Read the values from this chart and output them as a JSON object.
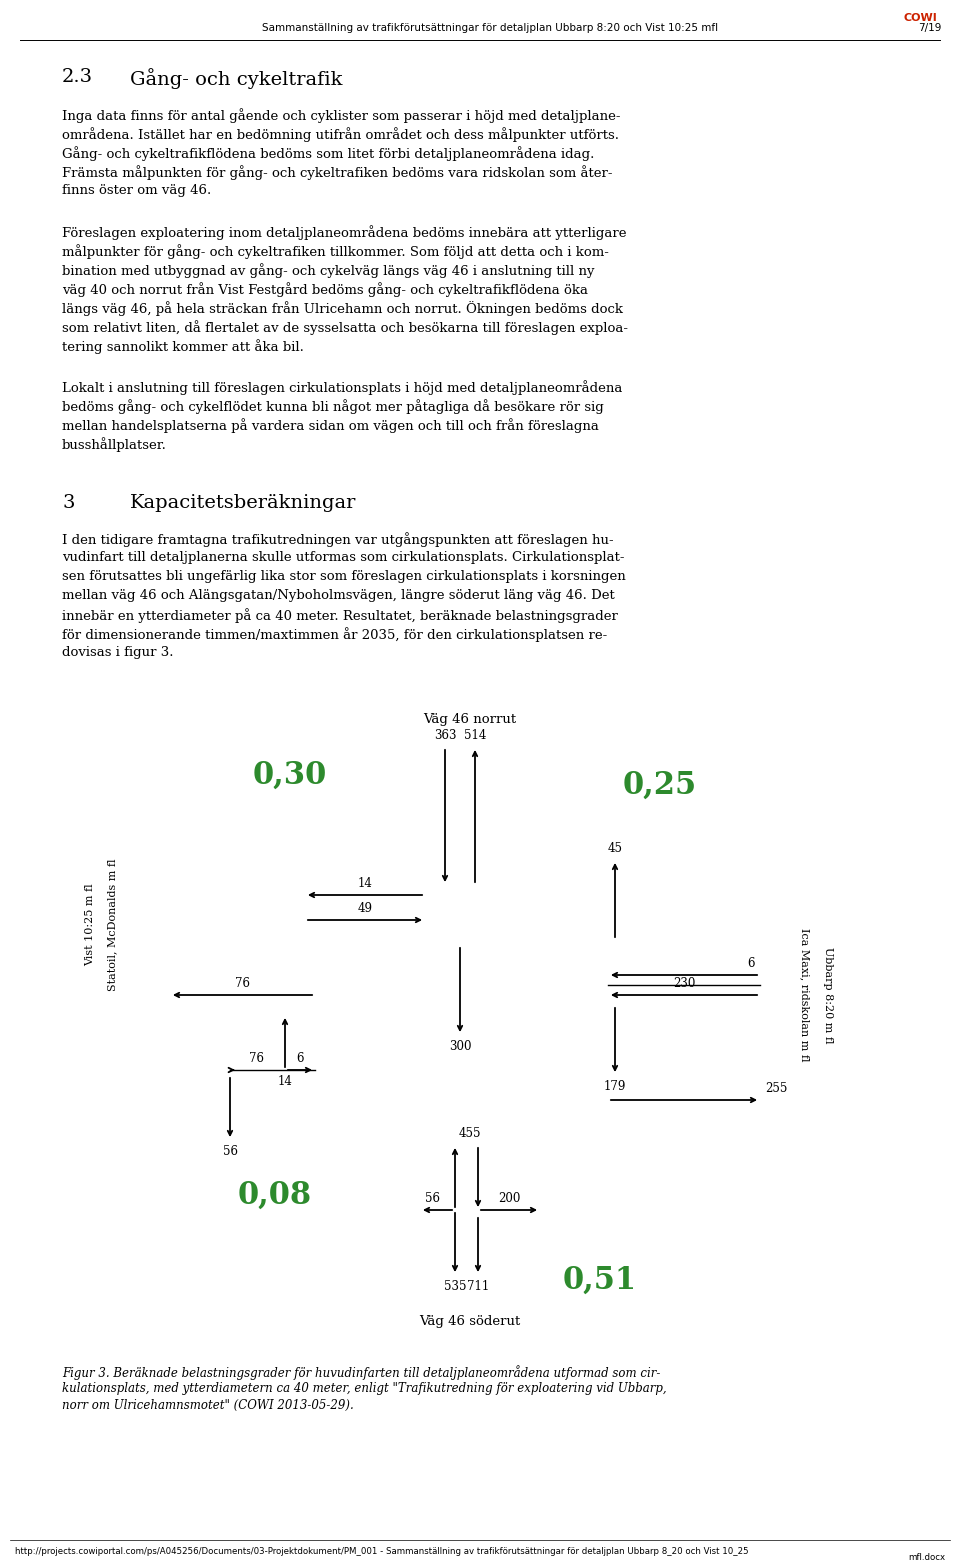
{
  "page_header_center": "Sammanställning av trafikförutsättningar för detaljplan Ubbarp 8:20 och Vist 10:25 mfl",
  "page_header_right": "7/19",
  "page_header_cowi": "COWI",
  "section_number": "2.3",
  "section_title": "Gång- och cykeltrafik",
  "section3_number": "3",
  "section3_title": "Kapacitetsberäkningar",
  "footer_url": "http://projects.cowiportal.com/ps/A045256/Documents/03-Projektdokument/PM_001 - Sammanställning av trafikförutsättningar för detaljplan Ubbarp 8_20 och Vist 10_25",
  "footer_right": "mfl.docx",
  "green_color": "#2d8a2d",
  "background_color": "#ffffff",
  "para1_lines": [
    "Inga data finns för antal gående och cyklister som passerar i höjd med detaljplane-",
    "områdena. Istället har en bedömning utifrån området och dess målpunkter utförts.",
    "Gång- och cykeltrafikflödena bedöms som litet förbi detaljplaneområdena idag.",
    "Främsta målpunkten för gång- och cykeltrafiken bedöms vara ridskolan som åter-",
    "finns öster om väg 46."
  ],
  "para2_lines": [
    "Föreslagen exploatering inom detaljplaneområdena bedöms innebära att ytterligare",
    "målpunkter för gång- och cykeltrafiken tillkommer. Som följd att detta och i kom-",
    "bination med utbyggnad av gång- och cykelväg längs väg 46 i anslutning till ny",
    "väg 40 och norrut från Vist Festgård bedöms gång- och cykeltrafikflödena öka",
    "längs väg 46, på hela sträckan från Ulricehamn och norrut. Ökningen bedöms dock",
    "som relativt liten, då flertalet av de sysselsatta och besökarna till föreslagen exploa-",
    "tering sannolikt kommer att åka bil."
  ],
  "para3_lines": [
    "Lokalt i anslutning till föreslagen cirkulationsplats i höjd med detaljplaneområdena",
    "bedöms gång- och cykelflödet kunna bli något mer påtagliga då besökare rör sig",
    "mellan handelsplatserna på vardera sidan om vägen och till och från föreslagna",
    "busshållplatser."
  ],
  "para4_lines": [
    "I den tidigare framtagna trafikutredningen var utgångspunkten att föreslagen hu-",
    "vudinfart till detaljplanerna skulle utformas som cirkulationsplats. Cirkulationsplat-",
    "sen förutsattes bli ungefärlig lika stor som föreslagen cirkulationsplats i korsningen",
    "mellan väg 46 och Alängsgatan/Nyboholmsvägen, längre söderut läng väg 46. Det",
    "innebär en ytterdiameter på ca 40 meter. Resultatet, beräknade belastningsgrader",
    "för dimensionerande timmen/maxtimmen år 2035, för den cirkulationsplatsen re-",
    "dovisas i figur 3."
  ],
  "caption_lines": [
    "Figur 3. Beräknade belastningsgrader för huvudinfarten till detaljplaneområdena utformad som cir-",
    "kulationsplats, med ytterdiametern ca 40 meter, enligt \"Trafikutredning för exploatering vid Ubbarp,",
    "norr om Ulricehamnsmotet\" (COWI 2013-05-29)."
  ],
  "north_label": "Väg 46 norrut",
  "south_label": "Väg 46 söderut",
  "west_label1": "Vist 10:25 m fl",
  "west_label2": "Statoil, McDonalds m fl",
  "east_label1": "Ubbarp 8:20 m fl",
  "east_label2": "Ica Maxi, ridskolan m fl",
  "val_tl": "0,30",
  "val_tr": "0,25",
  "val_bl": "0,08",
  "val_br": "0,51"
}
